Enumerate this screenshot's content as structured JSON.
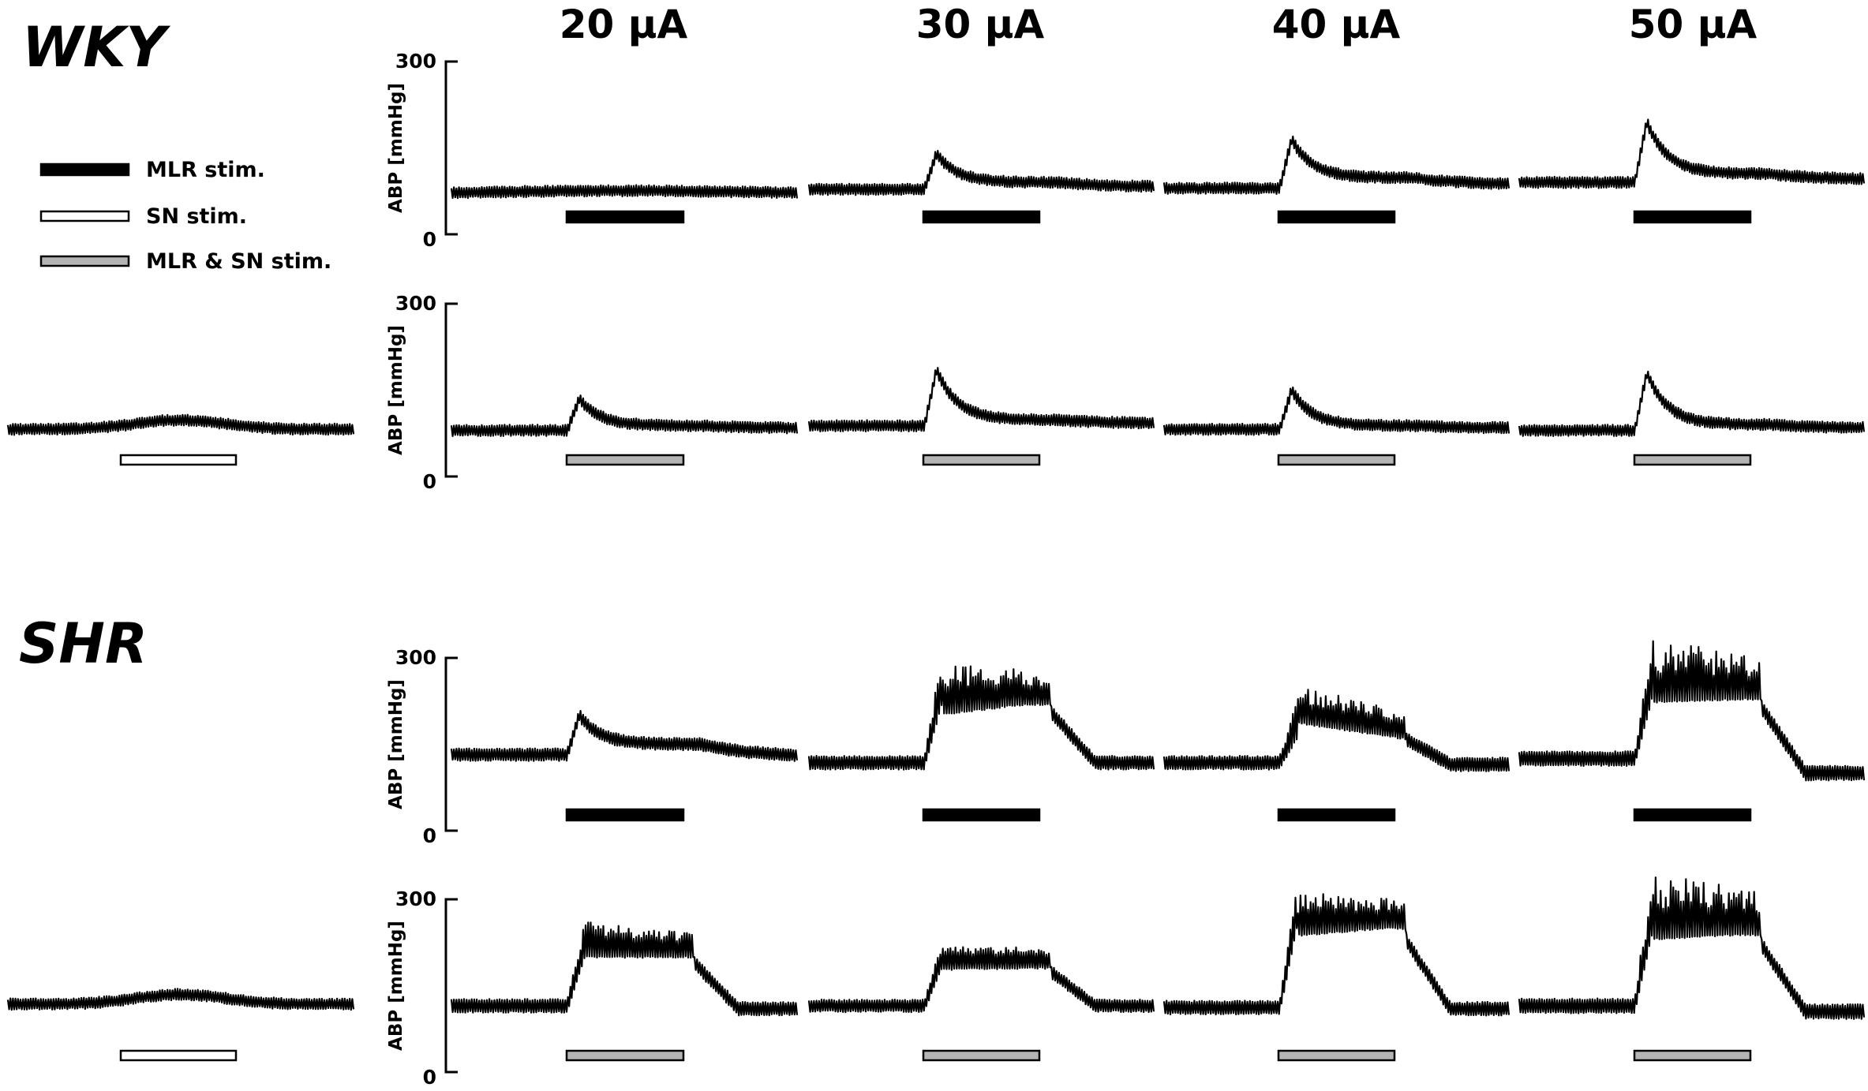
{
  "groups": [
    {
      "id": "wky",
      "label": "WKY"
    },
    {
      "id": "shr",
      "label": "SHR"
    }
  ],
  "currents": [
    "20 μA",
    "30 μA",
    "40 μA",
    "50 μA"
  ],
  "legend": [
    {
      "label": "MLR stim.",
      "fill": "#000000"
    },
    {
      "label": "SN stim.",
      "fill": "#ffffff"
    },
    {
      "label": "MLR & SN stim.",
      "fill": "#b4b4b4"
    }
  ],
  "colors": {
    "trace": "#000000",
    "mlr": "#000000",
    "sn": "#ffffff",
    "combo": "#b4b4b4"
  },
  "chart_data": {
    "type": "line",
    "ylabel": "ABP [mmHg]",
    "ylim": [
      0,
      300
    ],
    "yticks": [
      "0",
      "300"
    ],
    "rows": [
      {
        "group": "WKY",
        "stimulus": "MLR stim.",
        "bar": "mlr",
        "panels": [
          {
            "current": "20 μA",
            "baseline": 72,
            "peak": 78,
            "plateau": 78,
            "post": 74,
            "osc": 14,
            "kind": "none"
          },
          {
            "current": "30 μA",
            "baseline": 78,
            "peak": 140,
            "plateau": 90,
            "post": 82,
            "osc": 14,
            "kind": "spike"
          },
          {
            "current": "40 μA",
            "baseline": 80,
            "peak": 165,
            "plateau": 98,
            "post": 86,
            "osc": 14,
            "kind": "spike"
          },
          {
            "current": "50 μA",
            "baseline": 90,
            "peak": 195,
            "plateau": 105,
            "post": 95,
            "osc": 14,
            "kind": "spike"
          }
        ]
      },
      {
        "group": "WKY",
        "stimulus": "MLR & SN stim.",
        "bar": "combo",
        "sn_panel": {
          "baseline": 82,
          "peak": 98,
          "plateau": 98,
          "post": 88,
          "osc": 14,
          "kind": "bump"
        },
        "panels": [
          {
            "current": "20 μA",
            "baseline": 80,
            "peak": 135,
            "plateau": 88,
            "post": 84,
            "osc": 14,
            "kind": "spike"
          },
          {
            "current": "30 μA",
            "baseline": 88,
            "peak": 185,
            "plateau": 98,
            "post": 92,
            "osc": 14,
            "kind": "spike"
          },
          {
            "current": "40 μA",
            "baseline": 82,
            "peak": 150,
            "plateau": 88,
            "post": 84,
            "osc": 14,
            "kind": "spike"
          },
          {
            "current": "50 μA",
            "baseline": 80,
            "peak": 180,
            "plateau": 90,
            "post": 84,
            "osc": 14,
            "kind": "spike"
          }
        ]
      },
      {
        "group": "SHR",
        "stimulus": "MLR stim.",
        "bar": "mlr",
        "panels": [
          {
            "current": "20 μA",
            "baseline": 132,
            "peak": 200,
            "plateau": 150,
            "post": 128,
            "osc": 16,
            "kind": "spike"
          },
          {
            "current": "30 μA",
            "baseline": 118,
            "peak": 260,
            "plateau": 230,
            "post": 118,
            "osc": 18,
            "kind": "plateau",
            "ampl": 65
          },
          {
            "current": "40 μA",
            "baseline": 118,
            "peak": 250,
            "plateau": 170,
            "post": 115,
            "osc": 18,
            "kind": "decay",
            "ampl": 45
          },
          {
            "current": "50 μA",
            "baseline": 125,
            "peak": 320,
            "plateau": 240,
            "post": 100,
            "osc": 20,
            "kind": "plateau",
            "ampl": 90
          }
        ]
      },
      {
        "group": "SHR",
        "stimulus": "MLR & SN stim.",
        "bar": "combo",
        "sn_panel": {
          "baseline": 118,
          "peak": 135,
          "plateau": 135,
          "post": 120,
          "osc": 14,
          "kind": "bump"
        },
        "panels": [
          {
            "current": "20 μA",
            "baseline": 115,
            "peak": 250,
            "plateau": 210,
            "post": 110,
            "osc": 18,
            "kind": "plateau",
            "ampl": 40
          },
          {
            "current": "30 μA",
            "baseline": 115,
            "peak": 210,
            "plateau": 190,
            "post": 115,
            "osc": 16,
            "kind": "plateau",
            "ampl": 25
          },
          {
            "current": "40 μA",
            "baseline": 112,
            "peak": 290,
            "plateau": 260,
            "post": 110,
            "osc": 18,
            "kind": "plateau",
            "ampl": 55
          },
          {
            "current": "50 μA",
            "baseline": 115,
            "peak": 330,
            "plateau": 250,
            "post": 105,
            "osc": 20,
            "kind": "plateau",
            "ampl": 95
          }
        ]
      }
    ]
  }
}
